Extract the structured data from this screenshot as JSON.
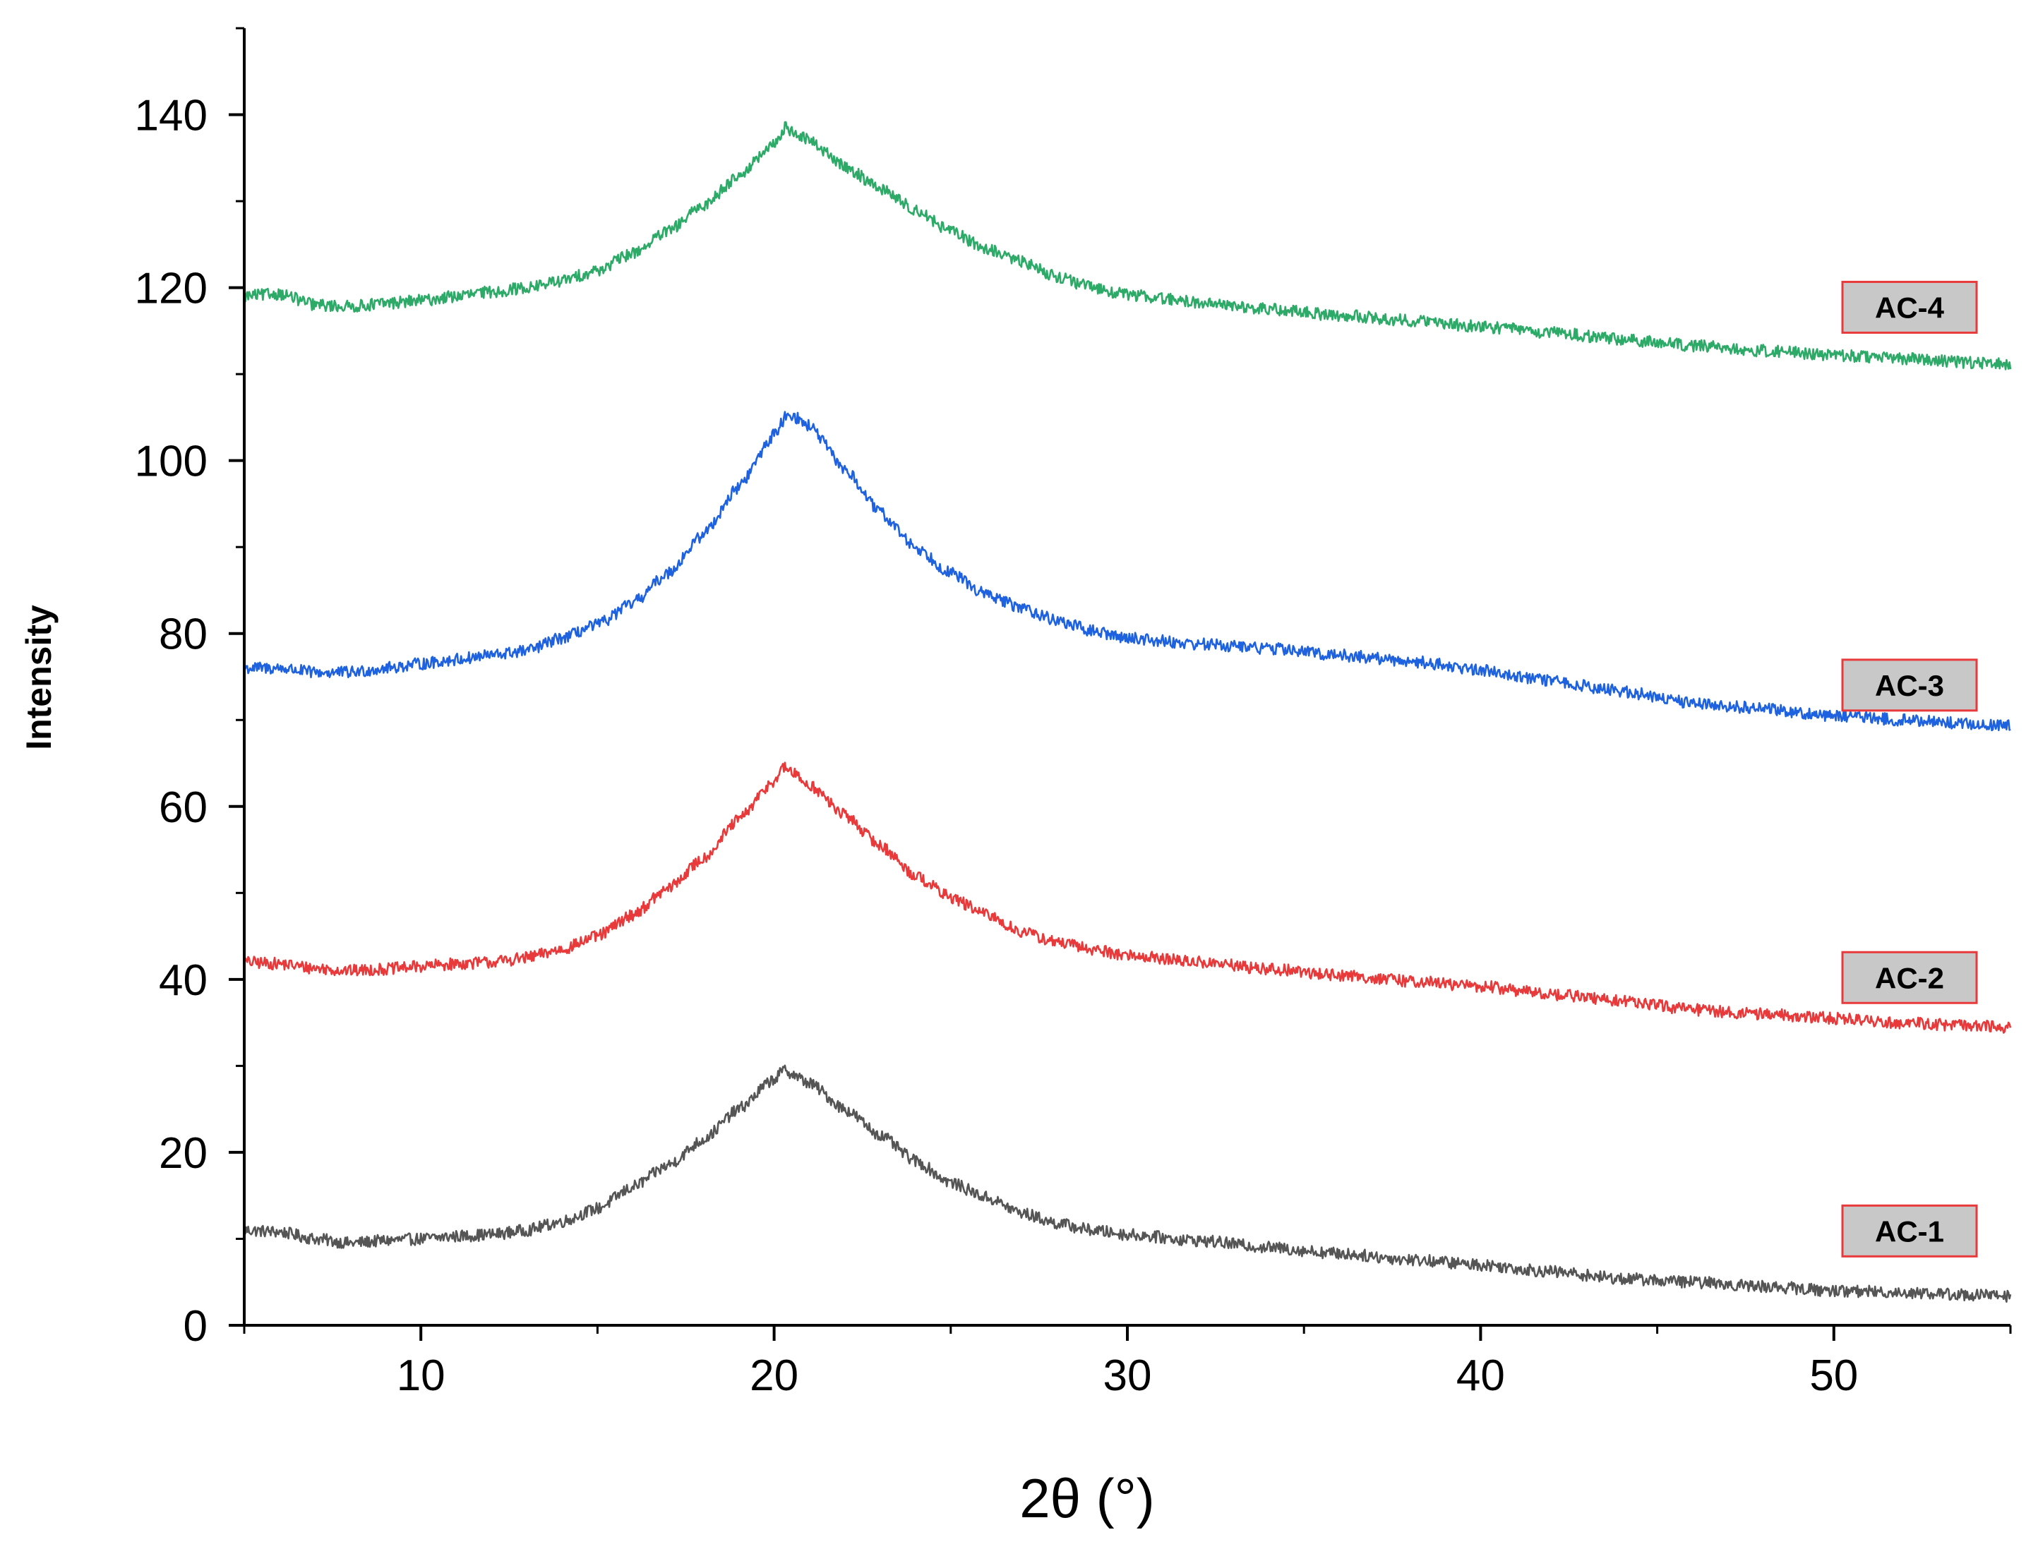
{
  "chart_data": {
    "type": "line",
    "title": "",
    "xlabel": "2θ (°)",
    "ylabel": "Intensity",
    "xlim": [
      5,
      55
    ],
    "ylim": [
      0,
      150
    ],
    "x_ticks": [
      "10",
      "20",
      "30",
      "40",
      "50"
    ],
    "y_ticks": [
      "0",
      "20",
      "40",
      "60",
      "80",
      "100",
      "120",
      "140"
    ],
    "grid": false,
    "legend_placement": "right, next to each curve",
    "series": [
      {
        "name": "AC-1",
        "color": "#555555",
        "points": [
          [
            5,
            11
          ],
          [
            6,
            10.8
          ],
          [
            7,
            10
          ],
          [
            8,
            9.5
          ],
          [
            9,
            9.8
          ],
          [
            10,
            10
          ],
          [
            11,
            10.3
          ],
          [
            12,
            10.5
          ],
          [
            13,
            11
          ],
          [
            14,
            12
          ],
          [
            15,
            13.5
          ],
          [
            16,
            16
          ],
          [
            17,
            18.5
          ],
          [
            18,
            21.5
          ],
          [
            19,
            25
          ],
          [
            20,
            28.5
          ],
          [
            20.3,
            29.5
          ],
          [
            21,
            28
          ],
          [
            22,
            25
          ],
          [
            23,
            22
          ],
          [
            24,
            19
          ],
          [
            25,
            16.5
          ],
          [
            26,
            14.8
          ],
          [
            27,
            13
          ],
          [
            28,
            11.8
          ],
          [
            29,
            11
          ],
          [
            30,
            10.5
          ],
          [
            32,
            9.8
          ],
          [
            34,
            9
          ],
          [
            36,
            8.3
          ],
          [
            38,
            7.6
          ],
          [
            40,
            7
          ],
          [
            42,
            6.2
          ],
          [
            44,
            5.4
          ],
          [
            46,
            5
          ],
          [
            48,
            4.5
          ],
          [
            50,
            4
          ],
          [
            52,
            3.8
          ],
          [
            54,
            3.5
          ],
          [
            55,
            3.4
          ]
        ]
      },
      {
        "name": "AC-2",
        "color": "#e8393b",
        "points": [
          [
            5,
            42
          ],
          [
            6,
            41.8
          ],
          [
            7,
            41.3
          ],
          [
            8,
            41
          ],
          [
            9,
            41.2
          ],
          [
            10,
            41.5
          ],
          [
            11,
            41.8
          ],
          [
            12,
            42
          ],
          [
            13,
            42.5
          ],
          [
            14,
            43.5
          ],
          [
            15,
            45
          ],
          [
            16,
            47.5
          ],
          [
            17,
            50.5
          ],
          [
            18,
            54
          ],
          [
            19,
            58.5
          ],
          [
            20,
            63
          ],
          [
            20.3,
            64.5
          ],
          [
            21,
            62.5
          ],
          [
            22,
            59
          ],
          [
            23,
            55.5
          ],
          [
            24,
            52
          ],
          [
            25,
            49.5
          ],
          [
            26,
            47.5
          ],
          [
            27,
            45.5
          ],
          [
            28,
            44.3
          ],
          [
            29,
            43.5
          ],
          [
            30,
            42.8
          ],
          [
            32,
            42
          ],
          [
            34,
            41.2
          ],
          [
            36,
            40.5
          ],
          [
            38,
            39.8
          ],
          [
            40,
            39.2
          ],
          [
            42,
            38.3
          ],
          [
            44,
            37.5
          ],
          [
            46,
            36.5
          ],
          [
            48,
            36
          ],
          [
            50,
            35.5
          ],
          [
            52,
            35
          ],
          [
            54,
            34.6
          ],
          [
            55,
            34.5
          ]
        ]
      },
      {
        "name": "AC-3",
        "color": "#1f62e0",
        "points": [
          [
            5,
            76
          ],
          [
            6,
            76
          ],
          [
            7,
            75.5
          ],
          [
            8,
            75.5
          ],
          [
            9,
            76
          ],
          [
            10,
            76.5
          ],
          [
            11,
            77
          ],
          [
            12,
            77.5
          ],
          [
            13,
            78
          ],
          [
            14,
            79.5
          ],
          [
            15,
            81
          ],
          [
            16,
            83.5
          ],
          [
            17,
            87
          ],
          [
            18,
            91.5
          ],
          [
            19,
            97
          ],
          [
            20,
            103
          ],
          [
            20.4,
            105.5
          ],
          [
            21,
            104
          ],
          [
            22,
            99
          ],
          [
            23,
            94
          ],
          [
            24,
            90
          ],
          [
            25,
            87
          ],
          [
            26,
            84.5
          ],
          [
            27,
            83
          ],
          [
            28,
            81.5
          ],
          [
            29,
            80.3
          ],
          [
            30,
            79.5
          ],
          [
            32,
            78.8
          ],
          [
            34,
            78.3
          ],
          [
            36,
            77.5
          ],
          [
            38,
            76.8
          ],
          [
            40,
            75.8
          ],
          [
            42,
            74.5
          ],
          [
            44,
            73.3
          ],
          [
            46,
            72
          ],
          [
            48,
            71.3
          ],
          [
            50,
            70.5
          ],
          [
            52,
            70
          ],
          [
            54,
            69.5
          ],
          [
            55,
            69.3
          ]
        ]
      },
      {
        "name": "AC-4",
        "color": "#2eaa68",
        "points": [
          [
            5,
            119
          ],
          [
            6,
            119.3
          ],
          [
            7,
            118
          ],
          [
            8,
            117.8
          ],
          [
            9,
            118.2
          ],
          [
            10,
            118.5
          ],
          [
            11,
            119
          ],
          [
            12,
            119.5
          ],
          [
            13,
            120
          ],
          [
            14,
            120.8
          ],
          [
            15,
            122
          ],
          [
            16,
            124
          ],
          [
            17,
            126.5
          ],
          [
            18,
            129.5
          ],
          [
            19,
            133
          ],
          [
            20,
            136.5
          ],
          [
            20.3,
            138.5
          ],
          [
            21,
            137
          ],
          [
            22,
            134
          ],
          [
            23,
            131.5
          ],
          [
            24,
            129
          ],
          [
            25,
            126.5
          ],
          [
            26,
            124.5
          ],
          [
            27,
            123
          ],
          [
            28,
            121.3
          ],
          [
            29,
            120
          ],
          [
            30,
            119.2
          ],
          [
            32,
            118.3
          ],
          [
            34,
            117.5
          ],
          [
            36,
            116.8
          ],
          [
            38,
            116.2
          ],
          [
            40,
            115.5
          ],
          [
            42,
            114.8
          ],
          [
            44,
            114
          ],
          [
            46,
            113.3
          ],
          [
            48,
            112.7
          ],
          [
            50,
            112.2
          ],
          [
            52,
            111.8
          ],
          [
            54,
            111.3
          ],
          [
            55,
            111.2
          ]
        ]
      }
    ]
  }
}
